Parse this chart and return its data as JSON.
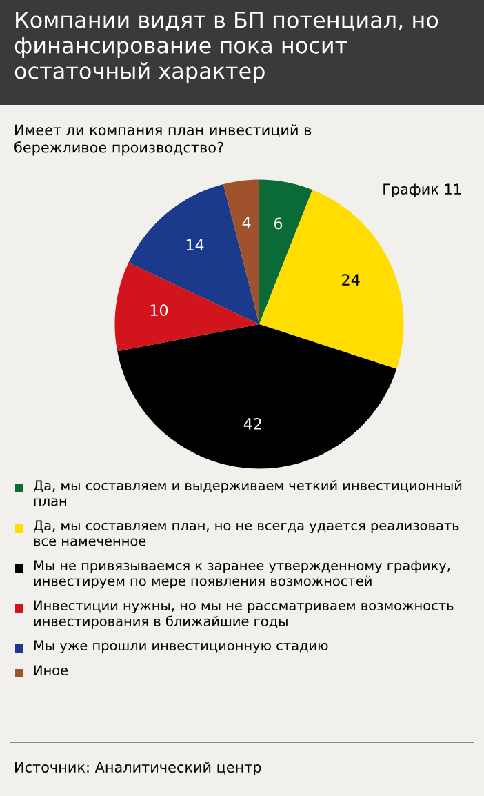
{
  "chart_data": {
    "type": "pie",
    "title": "Компании видят в БП потенциал, но финансирование пока носит остаточный характер",
    "subtitle": "Имеет ли компания план инвестиций в бережливое производство?",
    "annotations": [
      "График 11",
      "Источник: Аналитический центр"
    ],
    "categories": [
      "Да, мы составляем и выдерживаем четкий инвестиционный план",
      "Да, мы составляем план, но не всегда удается реализовать все намеченное",
      "Мы не привязываемся к заранее утвержденному графику, инвестируем по мере появления возможностей",
      "Инвестиции нужны, но мы не рассматриваем возможность инвестирования в ближайшие годы",
      "Мы уже прошли инвестиционную стадию",
      "Иное"
    ],
    "values": [
      6,
      24,
      42,
      10,
      14,
      4
    ],
    "colors": [
      "#0b6b37",
      "#ffdd00",
      "#000000",
      "#d2141c",
      "#1b3a8c",
      "#a0522d"
    ],
    "data_labels": true,
    "legend": "bottom"
  }
}
